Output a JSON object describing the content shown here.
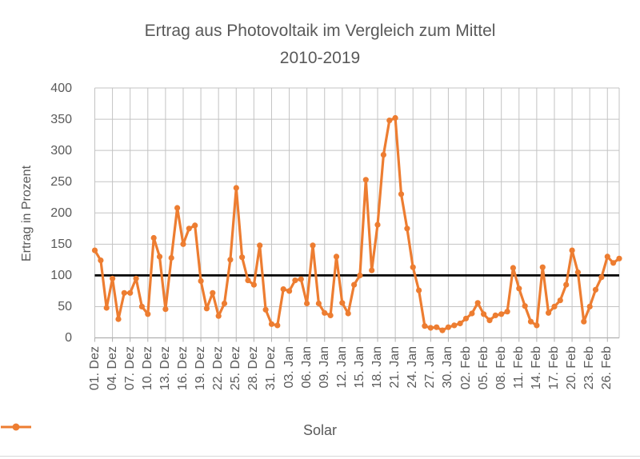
{
  "title": {
    "line1": "Ertrag aus Photovoltaik im Vergleich zum Mittel",
    "line2": "2010-2019"
  },
  "y_axis": {
    "title": "Ertrag in Prozent"
  },
  "legend": {
    "label": "Solar"
  },
  "colors": {
    "series": "#ED7D31",
    "reference_line": "#000000",
    "grid": "#c3c3c3",
    "axis": "#b0b0b0",
    "text": "#595959"
  },
  "chart_data": {
    "type": "line",
    "title": "Ertrag aus Photovoltaik im Vergleich zum Mittel 2010-2019",
    "xlabel": "",
    "ylabel": "Ertrag in Prozent",
    "ylim": [
      0,
      400
    ],
    "y_step": 50,
    "grid": true,
    "legend_position": "bottom",
    "frequency": "daily",
    "tick_every": 3,
    "tick_labels": [
      "01. Dez",
      "04. Dez",
      "07. Dez",
      "10. Dez",
      "13. Dez",
      "16. Dez",
      "19. Dez",
      "22. Dez",
      "25. Dez",
      "28. Dez",
      "31. Dez",
      "03. Jan",
      "06. Jan",
      "09. Jan",
      "12. Jan",
      "15. Jan",
      "18. Jan",
      "21. Jan",
      "24. Jan",
      "27. Jan",
      "30. Jan",
      "02. Feb",
      "05. Feb",
      "08. Feb",
      "11. Feb",
      "14. Feb",
      "17. Feb",
      "20. Feb",
      "23. Feb",
      "26. Feb"
    ],
    "series": [
      {
        "name": "Solar",
        "values": [
          140,
          124,
          48,
          95,
          30,
          72,
          72,
          95,
          50,
          38,
          160,
          130,
          46,
          128,
          208,
          150,
          175,
          180,
          91,
          47,
          72,
          35,
          55,
          125,
          240,
          129,
          92,
          85,
          148,
          45,
          22,
          20,
          78,
          75,
          92,
          94,
          55,
          148,
          55,
          40,
          36,
          130,
          56,
          39,
          85,
          100,
          253,
          108,
          181,
          293,
          348,
          352,
          230,
          175,
          113,
          76,
          19,
          16,
          17,
          12,
          17,
          20,
          23,
          31,
          39,
          56,
          38,
          28,
          36,
          38,
          42,
          112,
          79,
          51,
          26,
          20,
          113,
          40,
          50,
          60,
          85,
          140,
          105,
          26,
          50,
          77,
          97,
          130,
          120,
          127
        ]
      }
    ],
    "reference_line": 100
  }
}
